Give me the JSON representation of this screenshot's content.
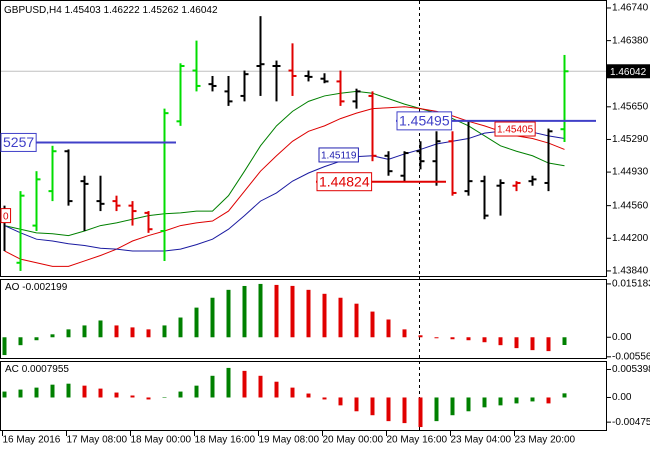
{
  "chart_data": [
    {
      "type": "ohlc",
      "title": "GBPUSD,H4",
      "categories": [
        "16 May 2016",
        null,
        null,
        null,
        "17 May 08:00",
        null,
        null,
        null,
        "18 May 00:00",
        null,
        null,
        null,
        "18 May 16:00",
        null,
        null,
        null,
        "19 May 08:00",
        null,
        null,
        null,
        "20 May 00:00",
        null,
        null,
        null,
        "20 May 16:00",
        null,
        null,
        null,
        "23 May 04:00",
        null,
        null,
        null,
        "23 May 20:00",
        null,
        null,
        null
      ],
      "open": [
        1.4439,
        1.4393,
        1.4434,
        1.4472,
        1.4516,
        1.4483,
        1.4461,
        1.4461,
        1.4456,
        1.4448,
        1.4428,
        1.4549,
        1.4605,
        1.459,
        1.4582,
        1.4577,
        1.461,
        1.461,
        1.4605,
        1.4599,
        1.4596,
        1.4593,
        1.4571,
        1.4577,
        1.4511,
        1.4489,
        1.4516,
        1.4505,
        1.4527,
        1.4472,
        1.4483,
        1.4478,
        1.4478,
        1.4483,
        1.4481,
        1.45403
      ],
      "high": [
        1.4456,
        1.4472,
        1.4494,
        1.4522,
        1.4518,
        1.4489,
        1.4489,
        1.4467,
        1.4461,
        1.445,
        1.4563,
        1.4613,
        1.4638,
        1.4599,
        1.4599,
        1.4605,
        1.4665,
        1.4616,
        1.4635,
        1.4605,
        1.4602,
        1.4605,
        1.4585,
        1.4582,
        1.4516,
        1.4516,
        1.4527,
        1.4538,
        1.4538,
        1.4549,
        1.4489,
        1.4485,
        1.4483,
        1.4489,
        1.4541,
        1.46222
      ],
      "low": [
        1.4406,
        1.4384,
        1.4428,
        1.4461,
        1.4456,
        1.4428,
        1.445,
        1.445,
        1.4434,
        1.4426,
        1.4395,
        1.4544,
        1.4582,
        1.4582,
        1.4566,
        1.4571,
        1.4577,
        1.4571,
        1.4577,
        1.4593,
        1.4591,
        1.4566,
        1.4563,
        1.4505,
        1.4489,
        1.4483,
        1.4496,
        1.4478,
        1.4467,
        1.4467,
        1.4441,
        1.4445,
        1.4472,
        1.4478,
        1.4472,
        1.45262
      ],
      "close": [
        1.4445,
        1.4467,
        1.4485,
        1.4516,
        1.4461,
        1.448,
        1.4458,
        1.4456,
        1.445,
        1.443,
        1.4558,
        1.461,
        1.4588,
        1.4588,
        1.4571,
        1.4601,
        1.4612,
        1.461,
        1.4599,
        1.4598,
        1.4593,
        1.4571,
        1.4582,
        1.4511,
        1.4494,
        1.4514,
        1.4505,
        1.4527,
        1.447,
        1.4483,
        1.4445,
        1.4481,
        1.4481,
        1.4485,
        1.4538,
        1.46042
      ],
      "bar_colors": [
        "#000000",
        "#00dd00",
        "#00dd00",
        "#00dd00",
        "#000000",
        "#000000",
        "#000000",
        "#e00000",
        "#e00000",
        "#e00000",
        "#00dd00",
        "#00dd00",
        "#00dd00",
        "#000000",
        "#000000",
        "#000000",
        "#000000",
        "#000000",
        "#e00000",
        "#000000",
        "#000000",
        "#e00000",
        "#000000",
        "#e00000",
        "#000000",
        "#000000",
        "#000000",
        "#000000",
        "#e00000",
        "#000000",
        "#000000",
        "#000000",
        "#e00000",
        "#000000",
        "#000000",
        "#00dd00"
      ],
      "lines": [
        {
          "color": "#008000",
          "values": [
            1.4434,
            1.443,
            1.4426,
            1.4425,
            1.4423,
            1.4428,
            1.4434,
            1.4437,
            1.4441,
            1.4445,
            1.4447,
            1.4448,
            1.445,
            1.445,
            1.4467,
            1.4494,
            1.4522,
            1.4544,
            1.456,
            1.4571,
            1.4577,
            1.458,
            1.4582,
            1.458,
            1.4574,
            1.4568,
            1.4563,
            1.4558,
            1.4552,
            1.4544,
            1.4533,
            1.4522,
            1.4516,
            1.4511,
            1.4503,
            1.45
          ]
        },
        {
          "color": "#dd0000",
          "values": [
            1.4406,
            1.4397,
            1.4393,
            1.4389,
            1.4389,
            1.4395,
            1.4401,
            1.4408,
            1.4417,
            1.4423,
            1.4428,
            1.4434,
            1.4437,
            1.4439,
            1.445,
            1.4472,
            1.4494,
            1.4511,
            1.4527,
            1.4538,
            1.4544,
            1.4552,
            1.4558,
            1.4563,
            1.4564,
            1.4565,
            1.4563,
            1.456,
            1.4555,
            1.4549,
            1.4544,
            1.4538,
            1.4533,
            1.453,
            1.4525,
            1.4518
          ]
        },
        {
          "color": "#1a1aa0",
          "values": [
            1.4434,
            1.4426,
            1.4419,
            1.4417,
            1.4414,
            1.4412,
            1.4409,
            1.4408,
            1.4406,
            1.4406,
            1.4406,
            1.4408,
            1.4413,
            1.4419,
            1.443,
            1.4445,
            1.4461,
            1.447,
            1.4483,
            1.4492,
            1.4499,
            1.4505,
            1.451,
            1.4511,
            1.4507,
            1.4513,
            1.4518,
            1.4524,
            1.4527,
            1.453,
            1.4536,
            1.4538,
            1.4538,
            1.4537,
            1.4533,
            1.453
          ]
        }
      ],
      "levels": [
        {
          "value": 1.45495,
          "color": "#4040c8"
        },
        {
          "value": 1.44824,
          "color": "#e00000"
        },
        {
          "value": 1.45257,
          "label": "5257",
          "color": "#4040c8"
        },
        {
          "value": 1.45405,
          "color": "#e00000"
        },
        {
          "value": 1.45119,
          "color": "#2020b0"
        },
        {
          "value": 1.4445,
          "label": "0",
          "color": "#e00000"
        }
      ],
      "ylim": [
        1.43784,
        1.46817
      ],
      "yticks": [
        {
          "value": 1.4674,
          "label": "1.46740"
        },
        {
          "value": 1.4638,
          "label": "1.46380"
        },
        {
          "value": 1.4565,
          "label": "1.45650"
        },
        {
          "value": 1.4529,
          "label": "1.45290"
        },
        {
          "value": 1.4493,
          "label": "1.44930"
        },
        {
          "value": 1.4456,
          "label": "1.44560"
        },
        {
          "value": 1.442,
          "label": "1.44200"
        },
        {
          "value": 1.4384,
          "label": "1.43840"
        }
      ]
    },
    {
      "type": "histogram",
      "title": "AO",
      "values": [
        -0.00506,
        -0.00225,
        -0.00084,
        0.00084,
        0.00225,
        0.00337,
        0.00478,
        0.00337,
        0.00281,
        0.00225,
        0.00337,
        0.00562,
        0.00844,
        0.01125,
        0.0135,
        0.0146,
        0.015183,
        0.0149,
        0.01462,
        0.0135,
        0.01237,
        0.01125,
        0.00956,
        0.00731,
        0.00506,
        0.00225,
        0.00056,
        -0.00028,
        -0.00056,
        -0.00084,
        -0.00141,
        -0.00225,
        -0.00309,
        -0.00366,
        -0.00394,
        -0.002199
      ],
      "up_color": "#008000",
      "down_color": "#e00000",
      "ylim": [
        -0.0059,
        0.0163
      ],
      "yticks": [
        0.015183,
        {
          "value": 0,
          "label": "0.00"
        },
        -0.005562
      ]
    },
    {
      "type": "histogram",
      "title": "AC",
      "values": [
        0.00114,
        0.00152,
        0.0019,
        0.00247,
        0.00266,
        0.00228,
        0.00171,
        0.00095,
        0.00038,
        -0.00038,
        2e-05,
        0.00114,
        0.00228,
        0.00418,
        0.0057,
        0.00513,
        0.00418,
        0.00304,
        0.0019,
        0.00076,
        -0.00038,
        -0.00152,
        -0.00266,
        -0.00342,
        -0.00456,
        -0.00494,
        -0.0057,
        -0.00456,
        -0.00342,
        -0.00266,
        -0.0019,
        -0.00152,
        -0.00114,
        -0.00076,
        -0.00114,
        0.0007955
      ],
      "up_color": "#008000",
      "down_color": "#e00000",
      "ylim": [
        -0.00627,
        0.00684
      ],
      "yticks": [
        0.005398,
        {
          "value": 0,
          "label": "0.00"
        },
        -0.004757
      ]
    }
  ]
}
